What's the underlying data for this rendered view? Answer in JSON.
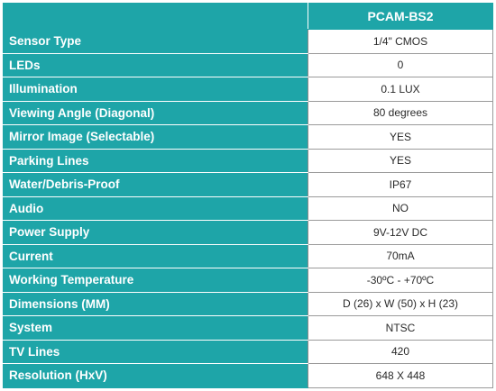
{
  "table": {
    "header": {
      "corner": "",
      "model": "PCAM-BS2"
    },
    "rows": [
      {
        "label": "Sensor Type",
        "value": "1/4\" CMOS"
      },
      {
        "label": "LEDs",
        "value": "0"
      },
      {
        "label": "Illumination",
        "value": "0.1 LUX"
      },
      {
        "label": "Viewing Angle (Diagonal)",
        "value": "80 degrees"
      },
      {
        "label": "Mirror Image (Selectable)",
        "value": "YES"
      },
      {
        "label": "Parking Lines",
        "value": "YES"
      },
      {
        "label": "Water/Debris-Proof",
        "value": "IP67"
      },
      {
        "label": "Audio",
        "value": "NO"
      },
      {
        "label": "Power Supply",
        "value": "9V-12V DC"
      },
      {
        "label": "Current",
        "value": "70mA"
      },
      {
        "label": "Working Temperature",
        "value": "-30ºC - +70ºC"
      },
      {
        "label": "Dimensions (MM)",
        "value": "D (26) x W (50) x H (23)"
      },
      {
        "label": "System",
        "value": "NTSC"
      },
      {
        "label": "TV Lines",
        "value": "420"
      },
      {
        "label": "Resolution (HxV)",
        "value": "648 X 448"
      }
    ]
  },
  "colors": {
    "accent": "#1ea5a8",
    "text": "#2a2a2a",
    "border": "#9a9a9a"
  }
}
